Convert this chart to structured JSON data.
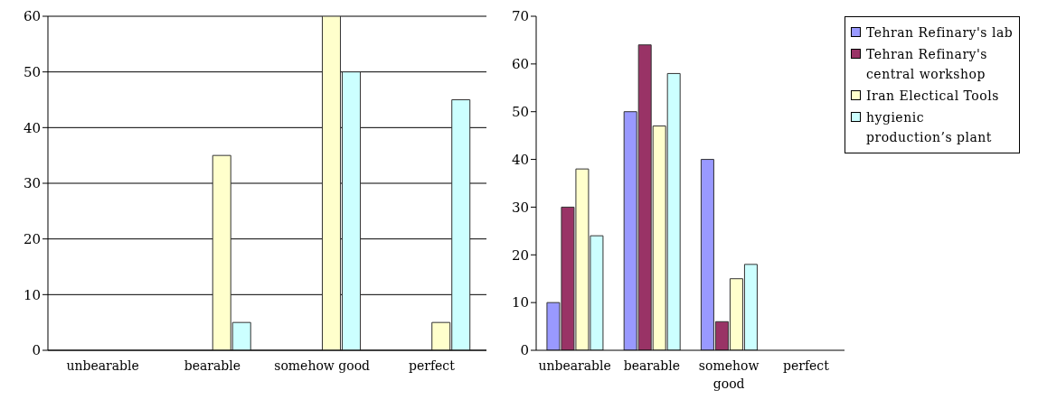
{
  "chart_data": [
    {
      "type": "bar",
      "categories": [
        "unbearable",
        "bearable",
        "somehow good",
        "perfect"
      ],
      "series": [
        {
          "color": "#9999ff",
          "values": [
            0,
            0,
            0,
            0
          ]
        },
        {
          "color": "#993366",
          "values": [
            0,
            0,
            0,
            0
          ]
        },
        {
          "color": "#ffffcc",
          "values": [
            0,
            35,
            60,
            5
          ]
        },
        {
          "color": "#ccffff",
          "values": [
            0,
            5,
            50,
            45
          ]
        }
      ],
      "ylim": [
        0,
        60
      ],
      "yticks": [
        0,
        10,
        20,
        30,
        40,
        50,
        60
      ],
      "grid": "y",
      "legend": false
    },
    {
      "type": "bar",
      "categories": [
        "unbearable",
        "bearable",
        "somehow good",
        "perfect"
      ],
      "series": [
        {
          "name": "Tehran Refinary's lab",
          "color": "#9999ff",
          "values": [
            10,
            50,
            40,
            0
          ]
        },
        {
          "name": "Tehran Refinary's central workshop",
          "color": "#993366",
          "values": [
            30,
            64,
            6,
            0
          ]
        },
        {
          "name": "Iran Electical Tools",
          "color": "#ffffcc",
          "values": [
            38,
            47,
            15,
            0
          ]
        },
        {
          "name": "hygienic production’s plant",
          "color": "#ccffff",
          "values": [
            24,
            58,
            18,
            0
          ]
        }
      ],
      "ylim": [
        0,
        70
      ],
      "yticks": [
        0,
        10,
        20,
        30,
        40,
        50,
        60,
        70
      ],
      "grid": false,
      "legend": "right"
    }
  ]
}
